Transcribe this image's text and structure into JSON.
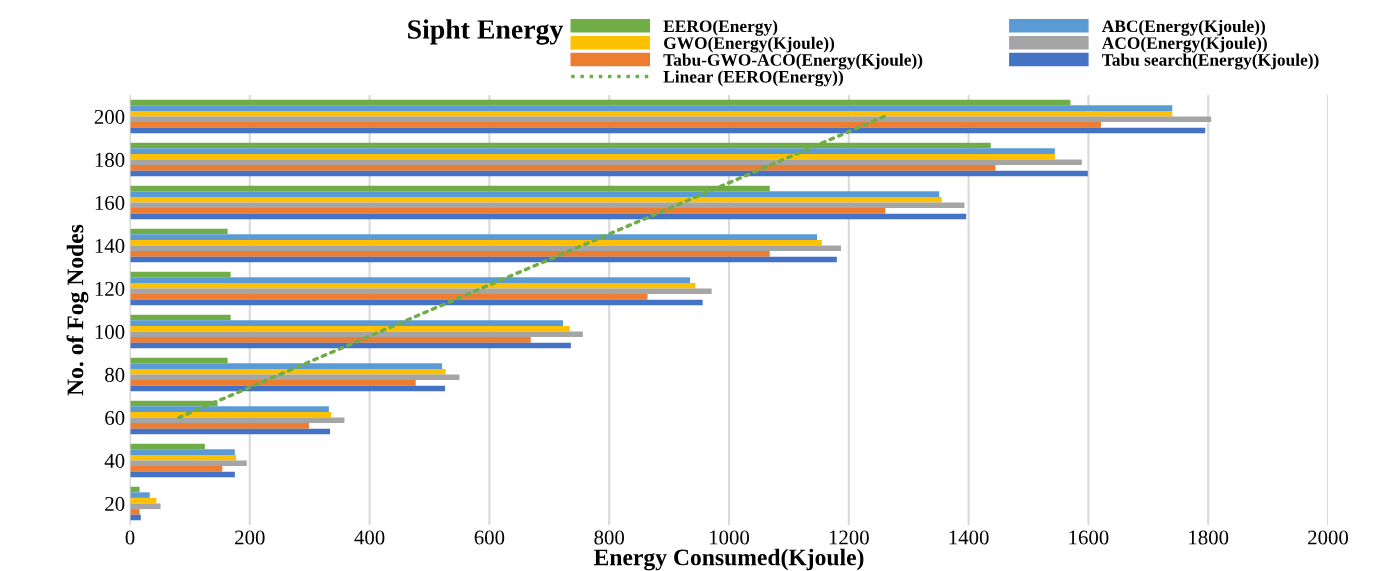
{
  "chart_data": {
    "type": "bar",
    "orientation": "horizontal",
    "title": "Sipht Energy",
    "xlabel": "Energy Consumed(Kjoule)",
    "ylabel": "No. of Fog Nodes",
    "categories": [
      "200",
      "180",
      "160",
      "140",
      "120",
      "100",
      "80",
      "60",
      "40",
      "20"
    ],
    "series": [
      {
        "name": "EERO(Energy)",
        "color": "#70ad47",
        "values": [
          1570,
          1437,
          1068,
          163,
          168,
          168,
          163,
          146,
          125,
          16
        ]
      },
      {
        "name": "ABC(Energy(Kjoule))",
        "color": "#5b9bd5",
        "values": [
          1740,
          1544,
          1351,
          1147,
          935,
          723,
          521,
          332,
          175,
          33
        ]
      },
      {
        "name": "GWO(Energy(Kjoule))",
        "color": "#ffc000",
        "values": [
          1740,
          1544,
          1355,
          1155,
          944,
          734,
          527,
          336,
          177,
          44
        ]
      },
      {
        "name": "ACO(Energy(Kjoule))",
        "color": "#a5a5a5",
        "values": [
          1805,
          1589,
          1393,
          1187,
          971,
          756,
          550,
          358,
          195,
          51
        ]
      },
      {
        "name": "Tabu-GWO-ACO(Energy(Kjoule))",
        "color": "#ed7d31",
        "values": [
          1621,
          1445,
          1261,
          1068,
          864,
          669,
          477,
          299,
          154,
          16
        ]
      },
      {
        "name": "Tabu search(Energy(Kjoule))",
        "color": "#4472c4",
        "values": [
          1795,
          1599,
          1396,
          1180,
          956,
          736,
          526,
          334,
          175,
          18
        ]
      },
      {
        "name": "Linear (EERO(Energy))",
        "type": "line",
        "line_style": "dotted",
        "color": "#70ad47",
        "values": [
          1259,
          1091,
          923,
          755,
          586,
          418,
          250,
          82,
          null,
          null
        ]
      }
    ],
    "xlim": [
      0,
      2000
    ],
    "xticks": [
      0,
      200,
      400,
      600,
      800,
      1000,
      1200,
      1400,
      1600,
      1800,
      2000
    ],
    "grid": "x",
    "legend": "top right"
  }
}
